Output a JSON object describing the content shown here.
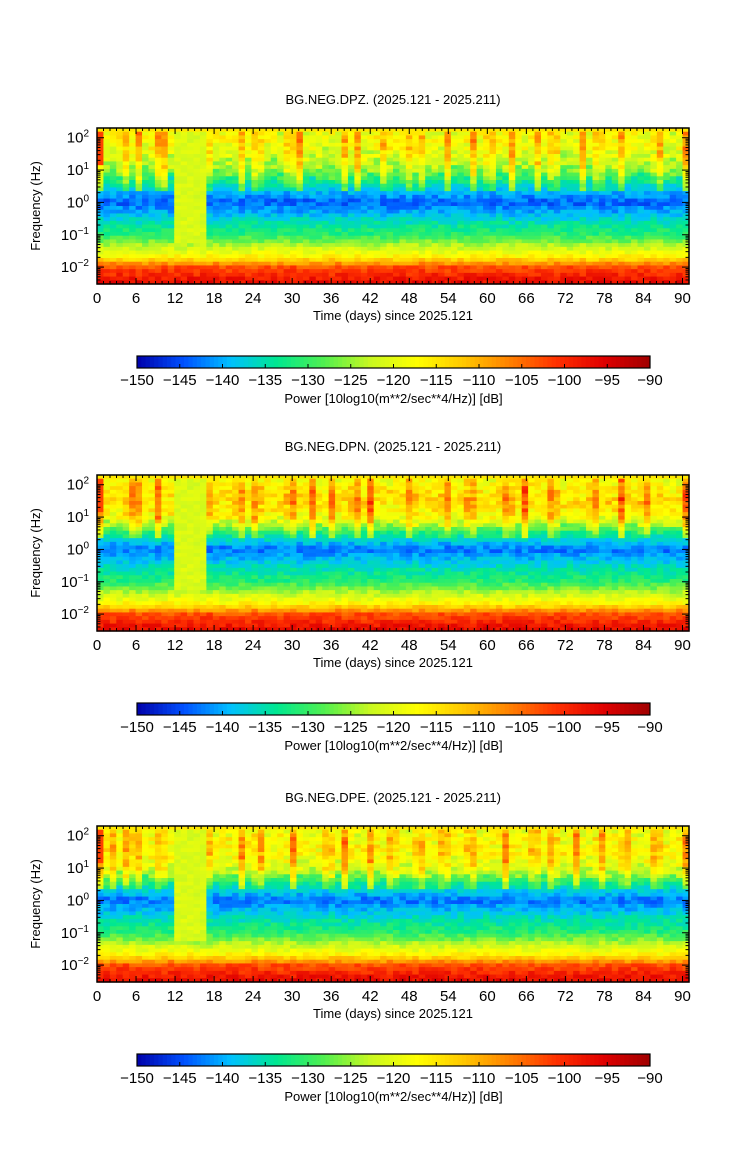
{
  "chart_data": [
    {
      "type": "heatmap",
      "title": "BG.NEG.DPZ. (2025.121 - 2025.211)",
      "xlabel": "Time (days) since 2025.121",
      "ylabel": "Frequency (Hz)",
      "xlim": [
        0,
        91
      ],
      "ylim": [
        0.003,
        200
      ],
      "yscale": "log",
      "xticks": [
        "0",
        "6",
        "12",
        "18",
        "24",
        "30",
        "36",
        "42",
        "48",
        "54",
        "60",
        "66",
        "72",
        "78",
        "84",
        "90"
      ],
      "yticks": [
        {
          "base": "10",
          "exp": "2"
        },
        {
          "base": "10",
          "exp": "1"
        },
        {
          "base": "10",
          "exp": "0"
        },
        {
          "base": "10",
          "exp": "−1"
        },
        {
          "base": "10",
          "exp": "−2"
        }
      ],
      "colorbar": {
        "label": "Power [10log10(m**2/sec**4/Hz)] [dB]",
        "range": [
          -150,
          -90
        ],
        "ticks": [
          "−150",
          "−145",
          "−140",
          "−135",
          "−130",
          "−125",
          "−120",
          "−115",
          "−110",
          "−105",
          "−100",
          "−95",
          "−90"
        ],
        "colors": [
          "#0000aa",
          "#0050ff",
          "#00c0ff",
          "#00e890",
          "#50f050",
          "#c8f820",
          "#ffff00",
          "#ffc800",
          "#ff8000",
          "#ff3000",
          "#e00000",
          "#a00000"
        ]
      },
      "power_profile": {
        "freq_hz": [
          200,
          100,
          30,
          10,
          3,
          1,
          0.5,
          0.2,
          0.1,
          0.05,
          0.02,
          0.01,
          0.003
        ],
        "power_db": [
          -121,
          -118,
          -121,
          -126,
          -137,
          -144,
          -140,
          -134,
          -131,
          -124,
          -116,
          -103,
          -96
        ]
      },
      "events_days": [
        0.5,
        4.2,
        6.3,
        9.2,
        10.4,
        16.8,
        22.1,
        24.6,
        29.7,
        31.2,
        37.9,
        40.1,
        44.3,
        47.7,
        49.6,
        53.8,
        57.9,
        60.4,
        63.7,
        67.9,
        70.2,
        74.6,
        77.1,
        80.4,
        86.3,
        90.5
      ],
      "data_gap_days": [
        12,
        17
      ]
    },
    {
      "type": "heatmap",
      "title": "BG.NEG.DPN. (2025.121 - 2025.211)",
      "xlabel": "Time (days) since 2025.121",
      "ylabel": "Frequency (Hz)",
      "xlim": [
        0,
        91
      ],
      "ylim": [
        0.003,
        200
      ],
      "yscale": "log",
      "xticks": [
        "0",
        "6",
        "12",
        "18",
        "24",
        "30",
        "36",
        "42",
        "48",
        "54",
        "60",
        "66",
        "72",
        "78",
        "84",
        "90"
      ],
      "yticks": [
        {
          "base": "10",
          "exp": "2"
        },
        {
          "base": "10",
          "exp": "1"
        },
        {
          "base": "10",
          "exp": "0"
        },
        {
          "base": "10",
          "exp": "−1"
        },
        {
          "base": "10",
          "exp": "−2"
        }
      ],
      "colorbar": {
        "label": "Power [10log10(m**2/sec**4/Hz)] [dB]",
        "range": [
          -150,
          -90
        ],
        "ticks": [
          "−150",
          "−145",
          "−140",
          "−135",
          "−130",
          "−125",
          "−120",
          "−115",
          "−110",
          "−105",
          "−100",
          "−95",
          "−90"
        ],
        "colors": [
          "#0000aa",
          "#0050ff",
          "#00c0ff",
          "#00e890",
          "#50f050",
          "#c8f820",
          "#ffff00",
          "#ffc800",
          "#ff8000",
          "#ff3000",
          "#e00000",
          "#a00000"
        ]
      },
      "power_profile": {
        "freq_hz": [
          200,
          100,
          30,
          10,
          3,
          1,
          0.5,
          0.2,
          0.1,
          0.05,
          0.02,
          0.01,
          0.003
        ],
        "power_db": [
          -121,
          -117,
          -114,
          -118,
          -133,
          -143,
          -139,
          -134,
          -131,
          -124,
          -116,
          -103,
          -96
        ]
      },
      "events_days": [
        0.5,
        5.2,
        6.1,
        9.3,
        16.8,
        22.0,
        24.5,
        29.8,
        33.1,
        36.3,
        39.8,
        42.0,
        48.3,
        53.6,
        57.4,
        63.2,
        65.8,
        70.1,
        76.3,
        80.6,
        84.2,
        90.4
      ],
      "data_gap_days": [
        12,
        17
      ]
    },
    {
      "type": "heatmap",
      "title": "BG.NEG.DPE. (2025.121 - 2025.211)",
      "xlabel": "Time (days) since 2025.121",
      "ylabel": "Frequency (Hz)",
      "xlim": [
        0,
        91
      ],
      "ylim": [
        0.003,
        200
      ],
      "yscale": "log",
      "xticks": [
        "0",
        "6",
        "12",
        "18",
        "24",
        "30",
        "36",
        "42",
        "48",
        "54",
        "60",
        "66",
        "72",
        "78",
        "84",
        "90"
      ],
      "yticks": [
        {
          "base": "10",
          "exp": "2"
        },
        {
          "base": "10",
          "exp": "1"
        },
        {
          "base": "10",
          "exp": "0"
        },
        {
          "base": "10",
          "exp": "−1"
        },
        {
          "base": "10",
          "exp": "−2"
        }
      ],
      "colorbar": {
        "label": "Power [10log10(m**2/sec**4/Hz)] [dB]",
        "range": [
          -150,
          -90
        ],
        "ticks": [
          "−150",
          "−145",
          "−140",
          "−135",
          "−130",
          "−125",
          "−120",
          "−115",
          "−110",
          "−105",
          "−100",
          "−95",
          "−90"
        ],
        "colors": [
          "#0000aa",
          "#0050ff",
          "#00c0ff",
          "#00e890",
          "#50f050",
          "#c8f820",
          "#ffff00",
          "#ffc800",
          "#ff8000",
          "#ff3000",
          "#e00000",
          "#a00000"
        ]
      },
      "power_profile": {
        "freq_hz": [
          200,
          100,
          30,
          10,
          3,
          1,
          0.5,
          0.2,
          0.1,
          0.05,
          0.02,
          0.01,
          0.003
        ],
        "power_db": [
          -121,
          -118,
          -117,
          -121,
          -134,
          -143,
          -139,
          -134,
          -131,
          -124,
          -116,
          -103,
          -96
        ]
      },
      "events_days": [
        0.5,
        2.2,
        4.7,
        6.1,
        9.8,
        16.8,
        22.2,
        24.9,
        30.1,
        35.6,
        38.2,
        42.2,
        45.4,
        49.6,
        53.4,
        57.5,
        62.9,
        67.3,
        70.1,
        73.5,
        77.4,
        81.2,
        86.0,
        90.3
      ],
      "data_gap_days": [
        12,
        17
      ]
    }
  ]
}
